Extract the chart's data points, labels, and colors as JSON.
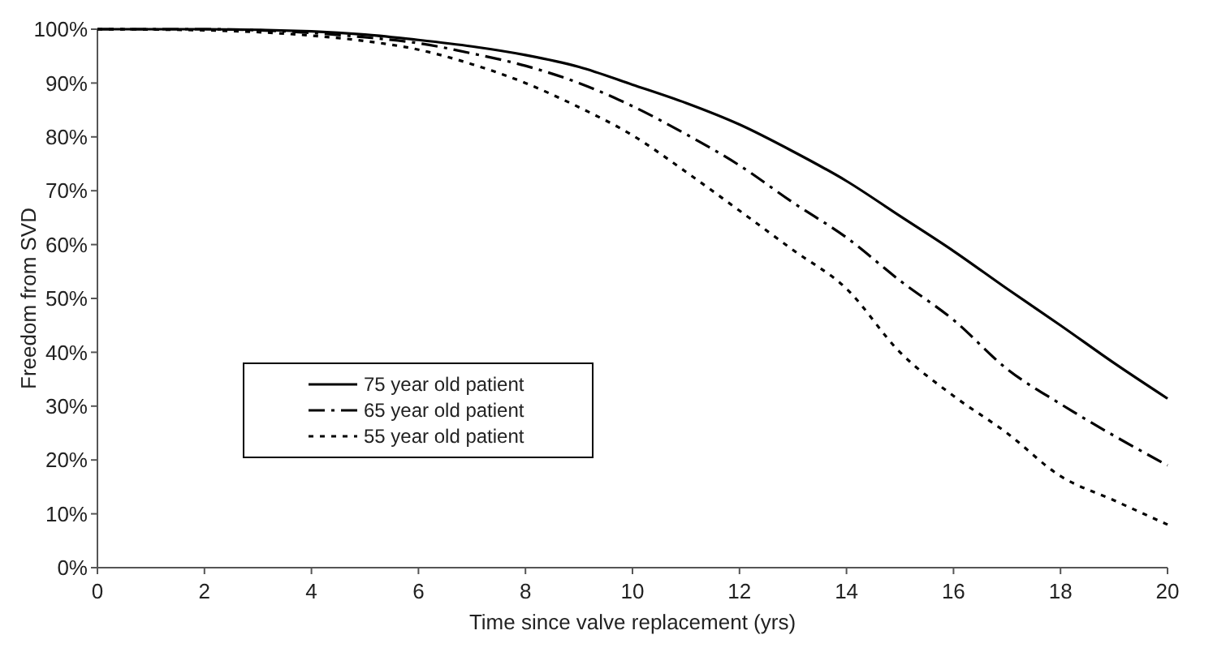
{
  "chart_data": {
    "type": "line",
    "xlabel": "Time since valve replacement (yrs)",
    "ylabel": "Freedom from SVD",
    "x": [
      0,
      2,
      4,
      5,
      6,
      7,
      8,
      9,
      10,
      11,
      12,
      13,
      14,
      15,
      16,
      17,
      18,
      19,
      20
    ],
    "series": [
      {
        "name": "75 year old patient",
        "color": "#000000",
        "line_style": "solid",
        "values": [
          100,
          100,
          99.6,
          99,
          98,
          96.8,
          95.2,
          93,
          89.7,
          86.3,
          82.3,
          77.3,
          71.8,
          65.3,
          58.8,
          51.8,
          45,
          38,
          31.4
        ]
      },
      {
        "name": "65 year old patient",
        "color": "#000000",
        "line_style": "dashdot",
        "values": [
          100,
          100,
          99.3,
          98.5,
          97.4,
          95.5,
          93.2,
          90,
          85.7,
          80.5,
          74.7,
          67.8,
          61.3,
          53.3,
          46,
          36.9,
          30.4,
          24.5,
          19
        ]
      },
      {
        "name": "55 year old patient",
        "color": "#000000",
        "line_style": "dotted",
        "values": [
          100,
          99.8,
          98.8,
          97.8,
          96.2,
          93.5,
          90,
          85.5,
          80.3,
          73.5,
          66.3,
          59,
          51.8,
          40,
          31.9,
          25,
          17,
          12.5,
          8
        ]
      }
    ],
    "xlim": [
      0,
      20
    ],
    "xticks": [
      0,
      2,
      4,
      6,
      8,
      10,
      12,
      14,
      16,
      18,
      20
    ],
    "ylim": [
      0,
      100
    ],
    "yticks": [
      {
        "value": 0,
        "label": "0%"
      },
      {
        "value": 10,
        "label": "10%"
      },
      {
        "value": 20,
        "label": "20%"
      },
      {
        "value": 30,
        "label": "30%"
      },
      {
        "value": 40,
        "label": "40%"
      },
      {
        "value": 50,
        "label": "50%"
      },
      {
        "value": 60,
        "label": "60%"
      },
      {
        "value": 70,
        "label": "70%"
      },
      {
        "value": 80,
        "label": "80%"
      },
      {
        "value": 90,
        "label": "90%"
      },
      {
        "value": 100,
        "label": "100%"
      }
    ],
    "grid": false,
    "legend": "bottom left",
    "marker": "none"
  }
}
